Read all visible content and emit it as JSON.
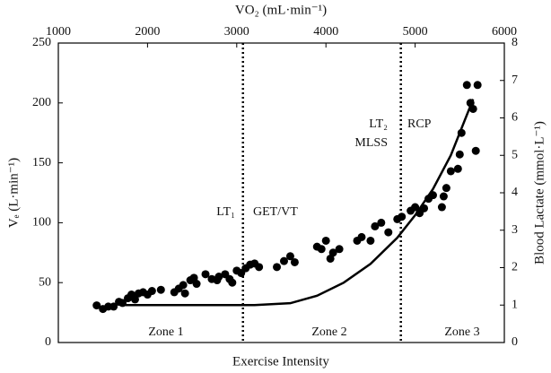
{
  "chart_data": {
    "type": "scatter",
    "xlabel_top": "VO₂ (mL·min⁻¹)",
    "xlabel": "Exercise Intensity",
    "ylabel": "Vₑ (L·min⁻¹)",
    "y2label": "Blood Lactate (mmol·L⁻¹)",
    "xlim": [
      1000,
      6000
    ],
    "xticks": [
      1000,
      2000,
      3000,
      4000,
      5000,
      6000
    ],
    "ylim": [
      0,
      250
    ],
    "yticks": [
      0,
      50,
      100,
      150,
      200,
      250
    ],
    "y2lim": [
      0,
      8
    ],
    "y2ticks": [
      0,
      1,
      2,
      3,
      4,
      5,
      6,
      7,
      8
    ],
    "vlines": [
      3070,
      4840
    ],
    "annotations": [
      "LT₁",
      "GET/VT",
      "LT₂",
      "RCP",
      "MLSS",
      "Zone 1",
      "Zone 2",
      "Zone 3"
    ],
    "series": [
      {
        "type": "scatter",
        "color": "#000000",
        "x": [
          1430,
          1500,
          1560,
          1620,
          1680,
          1720,
          1780,
          1820,
          1860,
          1900,
          1950,
          2000,
          2050,
          2150,
          2300,
          2350,
          2400,
          2420,
          2480,
          2520,
          2550,
          2650,
          2720,
          2780,
          2800,
          2870,
          2920,
          2950,
          3000,
          3050,
          3100,
          3150,
          3200,
          3250,
          3450,
          3530,
          3600,
          3650,
          3900,
          3950,
          4000,
          4050,
          4080,
          4150,
          4350,
          4400,
          4500,
          4550,
          4620,
          4700,
          4800,
          4850,
          4950,
          5000,
          5050,
          5100,
          5150,
          5200,
          5300,
          5320,
          5350,
          5400,
          5480,
          5500,
          5520,
          5580,
          5620,
          5650,
          5680,
          5700
        ],
        "values": [
          31,
          28,
          30,
          30,
          34,
          33,
          37,
          40,
          36,
          41,
          42,
          40,
          43,
          44,
          42,
          45,
          48,
          41,
          52,
          54,
          49,
          57,
          53,
          52,
          55,
          57,
          53,
          50,
          60,
          58,
          62,
          65,
          66,
          63,
          63,
          68,
          72,
          67,
          80,
          78,
          85,
          70,
          75,
          78,
          85,
          88,
          85,
          97,
          100,
          92,
          103,
          105,
          110,
          113,
          108,
          112,
          120,
          123,
          113,
          122,
          129,
          143,
          145,
          157,
          175,
          215,
          200,
          195,
          160,
          215
        ]
      },
      {
        "type": "line",
        "axis": "y2",
        "color": "#000000",
        "x": [
          1750,
          2500,
          3200,
          3600,
          3900,
          4200,
          4500,
          4800,
          5000,
          5200,
          5400,
          5600,
          5650
        ],
        "values": [
          1.0,
          1.0,
          1.0,
          1.05,
          1.25,
          1.6,
          2.1,
          2.8,
          3.4,
          4.1,
          5.0,
          6.2,
          6.5
        ]
      }
    ]
  }
}
